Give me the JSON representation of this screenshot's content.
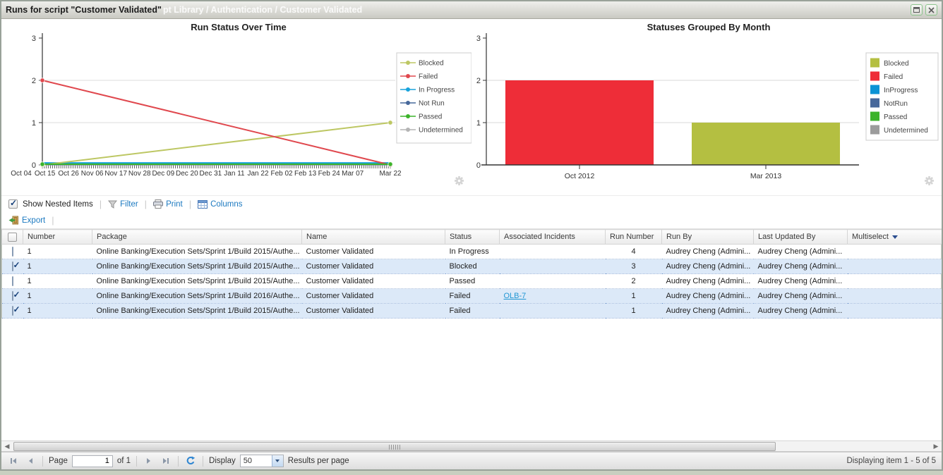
{
  "window": {
    "title": "Runs for script \"Customer Validated\"",
    "background_breadcrumb": "pt Library / Authentication / Customer Validated"
  },
  "chart_data": [
    {
      "type": "line",
      "title": "Run Status Over Time",
      "x_labels": [
        "Oct 04",
        "Oct 15",
        "Oct 26",
        "Nov 06",
        "Nov 17",
        "Nov 28",
        "Dec 09",
        "Dec 20",
        "Dec 31",
        "Jan 11",
        "Jan 22",
        "Feb 02",
        "Feb 13",
        "Feb 24",
        "Mar 07",
        "Mar 22"
      ],
      "ylim": [
        0,
        3
      ],
      "yticks": [
        0,
        1,
        2,
        3
      ],
      "grid": true,
      "legend_position": "right",
      "series": [
        {
          "name": "Blocked",
          "color": "#bdc763",
          "start": 0,
          "end": 1
        },
        {
          "name": "Failed",
          "color": "#e0484e",
          "start": 2,
          "end": 0
        },
        {
          "name": "In Progress",
          "color": "#18a3dc",
          "start": 0,
          "end": 0
        },
        {
          "name": "Not Run",
          "color": "#47689b",
          "start": 0,
          "end": 0
        },
        {
          "name": "Passed",
          "color": "#3cb32a",
          "start": 0,
          "end": 0
        },
        {
          "name": "Undetermined",
          "color": "#b4b4b4",
          "start": 0,
          "end": 0
        }
      ]
    },
    {
      "type": "bar",
      "title": "Statuses Grouped By Month",
      "categories": [
        "Oct 2012",
        "Mar 2013"
      ],
      "values": [
        2,
        1
      ],
      "bar_statuses": [
        "Failed",
        "Blocked"
      ],
      "bar_colors": [
        "#ee2d38",
        "#b4bf41"
      ],
      "ylim": [
        0,
        3
      ],
      "yticks": [
        0,
        1,
        2,
        3
      ],
      "grid": true,
      "legend_position": "right",
      "legend": [
        {
          "name": "Blocked",
          "color": "#b4bf41"
        },
        {
          "name": "Failed",
          "color": "#ee2d38"
        },
        {
          "name": "InProgress",
          "color": "#0b93d5"
        },
        {
          "name": "NotRun",
          "color": "#47689b"
        },
        {
          "name": "Passed",
          "color": "#3cb32a"
        },
        {
          "name": "Undetermined",
          "color": "#9c9c9c"
        }
      ]
    }
  ],
  "toolbar": {
    "show_nested_label": "Show Nested Items",
    "show_nested_checked": true,
    "filter_label": "Filter",
    "print_label": "Print",
    "columns_label": "Columns",
    "export_label": "Export"
  },
  "table": {
    "columns": [
      "",
      "Number",
      "Package",
      "Name",
      "Status",
      "Associated Incidents",
      "Run Number",
      "Run By",
      "Last Updated By",
      "Multiselect"
    ],
    "rows": [
      {
        "checked": false,
        "number": "1",
        "package": "Online Banking/Execution Sets/Sprint 1/Build 2015/Authe...",
        "name": "Customer Validated",
        "status": "In Progress",
        "incident": "",
        "run_number": "4",
        "run_by": "Audrey Cheng (Admini...",
        "last_updated_by": "Audrey Cheng (Admini..."
      },
      {
        "checked": true,
        "number": "1",
        "package": "Online Banking/Execution Sets/Sprint 1/Build 2015/Authe...",
        "name": "Customer Validated",
        "status": "Blocked",
        "incident": "",
        "run_number": "3",
        "run_by": "Audrey Cheng (Admini...",
        "last_updated_by": "Audrey Cheng (Admini..."
      },
      {
        "checked": false,
        "number": "1",
        "package": "Online Banking/Execution Sets/Sprint 1/Build 2015/Authe...",
        "name": "Customer Validated",
        "status": "Passed",
        "incident": "",
        "run_number": "2",
        "run_by": "Audrey Cheng (Admini...",
        "last_updated_by": "Audrey Cheng (Admini..."
      },
      {
        "checked": true,
        "number": "1",
        "package": "Online Banking/Execution Sets/Sprint 1/Build 2016/Authe...",
        "name": "Customer Validated",
        "status": "Failed",
        "incident": "OLB-7",
        "run_number": "1",
        "run_by": "Audrey Cheng (Admini...",
        "last_updated_by": "Audrey Cheng (Admini..."
      },
      {
        "checked": true,
        "number": "1",
        "package": "Online Banking/Execution Sets/Sprint 1/Build 2015/Authe...",
        "name": "Customer Validated",
        "status": "Failed",
        "incident": "",
        "run_number": "1",
        "run_by": "Audrey Cheng (Admini...",
        "last_updated_by": "Audrey Cheng (Admini..."
      }
    ]
  },
  "pagination": {
    "page_label": "Page",
    "page_value": "1",
    "of_label": "of 1",
    "display_label": "Display",
    "display_value": "50",
    "results_label": "Results per page",
    "status_text": "Displaying item 1 - 5 of 5"
  }
}
